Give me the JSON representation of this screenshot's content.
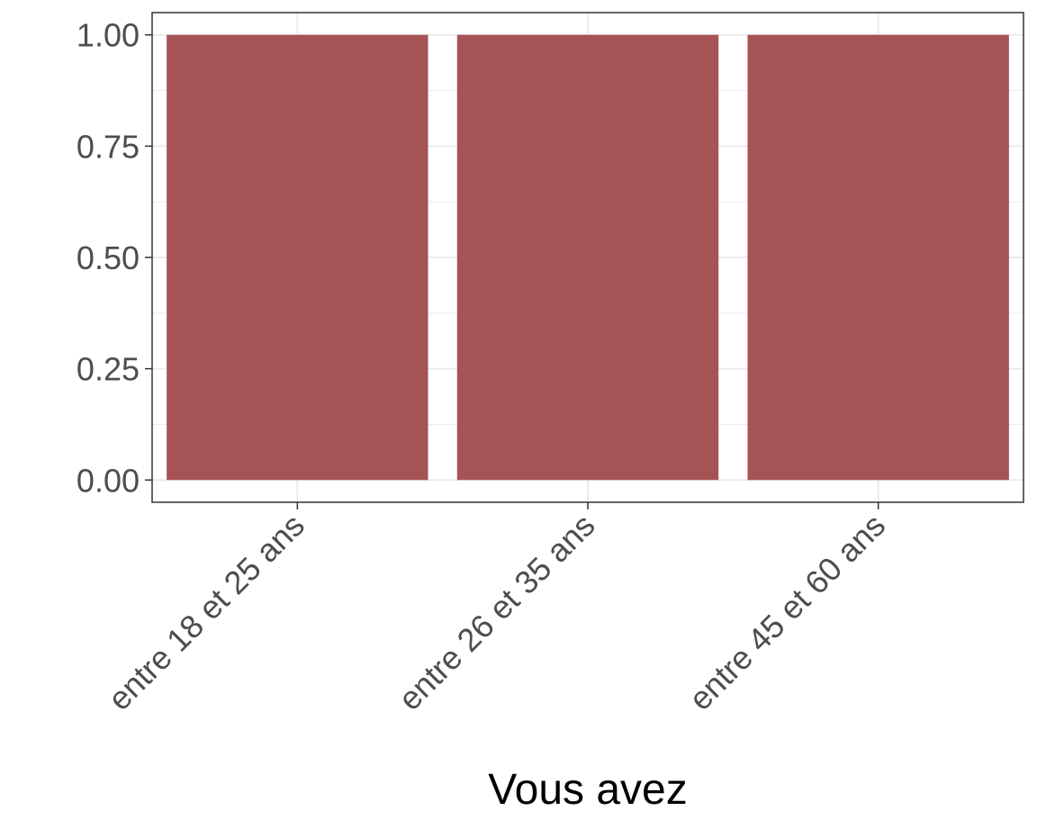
{
  "chart_data": {
    "type": "bar",
    "title": "",
    "xlabel": "Vous avez",
    "ylabel": "",
    "categories": [
      "entre 18 et 25 ans",
      "entre 26 et 35 ans",
      "entre 45 et 60 ans"
    ],
    "values": [
      1.0,
      1.0,
      1.0
    ],
    "ylim": [
      -0.05,
      1.05
    ],
    "yticks": [
      0.0,
      0.25,
      0.5,
      0.75,
      1.0
    ],
    "ytick_labels": [
      "0.00",
      "0.25",
      "0.50",
      "0.75",
      "1.00"
    ],
    "grid": true,
    "legend": "none",
    "colors": {
      "bar": "#a65356",
      "grid": "#ebebeb",
      "panel_border": "#333333"
    }
  }
}
